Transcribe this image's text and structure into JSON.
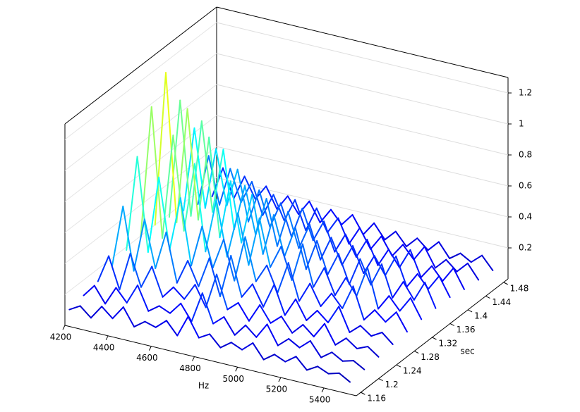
{
  "chart_data": {
    "type": "waterfall3d",
    "xlabel": "Hz",
    "ylabel": "sec",
    "x": [
      4200,
      4250,
      4300,
      4350,
      4400,
      4450,
      4500,
      4550,
      4600,
      4650,
      4700,
      4750,
      4800,
      4850,
      4900,
      4950,
      5000,
      5050,
      5100,
      5150,
      5200,
      5250,
      5300,
      5350,
      5400,
      5450,
      5500
    ],
    "xlim": [
      4200,
      5550
    ],
    "xticks": [
      4200,
      4400,
      4600,
      4800,
      5000,
      5200,
      5400
    ],
    "ylim": [
      1.15,
      1.49
    ],
    "yticks": [
      1.16,
      1.2,
      1.24,
      1.28,
      1.32,
      1.36,
      1.4,
      1.44,
      1.48
    ],
    "zlim": [
      0,
      1.3
    ],
    "zticks": [
      0.2,
      0.4,
      0.6,
      0.8,
      1,
      1.2
    ],
    "colormap": "jet",
    "colorlim": [
      0,
      1.2
    ],
    "series": [
      {
        "time": 1.16,
        "values": [
          0.08,
          0.12,
          0.06,
          0.15,
          0.09,
          0.18,
          0.07,
          0.12,
          0.1,
          0.16,
          0.08,
          0.22,
          0.1,
          0.14,
          0.07,
          0.12,
          0.09,
          0.15,
          0.06,
          0.11,
          0.08,
          0.13,
          0.06,
          0.1,
          0.07,
          0.09,
          0.05
        ]
      },
      {
        "time": 1.192,
        "values": [
          0.1,
          0.18,
          0.08,
          0.2,
          0.12,
          0.25,
          0.1,
          0.15,
          0.12,
          0.2,
          0.1,
          0.3,
          0.12,
          0.18,
          0.08,
          0.16,
          0.1,
          0.2,
          0.08,
          0.14,
          0.1,
          0.16,
          0.07,
          0.12,
          0.08,
          0.1,
          0.06
        ]
      },
      {
        "time": 1.224,
        "values": [
          0.12,
          0.3,
          0.1,
          0.35,
          0.15,
          0.3,
          0.12,
          0.2,
          0.14,
          0.25,
          0.12,
          0.35,
          0.14,
          0.2,
          0.1,
          0.22,
          0.12,
          0.18,
          0.09,
          0.16,
          0.1,
          0.2,
          0.08,
          0.14,
          0.09,
          0.12,
          0.07
        ]
      },
      {
        "time": 1.256,
        "values": [
          0.15,
          0.55,
          0.15,
          0.5,
          0.2,
          0.45,
          0.14,
          0.3,
          0.15,
          0.35,
          0.12,
          0.4,
          0.15,
          0.25,
          0.12,
          0.28,
          0.1,
          0.22,
          0.1,
          0.18,
          0.12,
          0.24,
          0.09,
          0.15,
          0.1,
          0.14,
          0.08
        ]
      },
      {
        "time": 1.288,
        "values": [
          0.18,
          0.8,
          0.2,
          0.7,
          0.25,
          0.6,
          0.18,
          0.45,
          0.2,
          0.4,
          0.15,
          0.45,
          0.18,
          0.3,
          0.14,
          0.35,
          0.12,
          0.25,
          0.12,
          0.22,
          0.14,
          0.3,
          0.1,
          0.18,
          0.12,
          0.2,
          0.09
        ]
      },
      {
        "time": 1.32,
        "values": [
          0.2,
          1.05,
          0.22,
          0.9,
          0.3,
          0.75,
          0.2,
          0.55,
          0.2,
          0.5,
          0.18,
          0.5,
          0.2,
          0.35,
          0.15,
          0.4,
          0.14,
          0.28,
          0.12,
          0.25,
          0.15,
          0.35,
          0.1,
          0.2,
          0.12,
          0.22,
          0.1
        ]
      },
      {
        "time": 1.352,
        "values": [
          0.2,
          1.2,
          0.25,
          1.0,
          0.3,
          0.85,
          0.22,
          0.6,
          0.22,
          0.55,
          0.18,
          0.45,
          0.2,
          0.4,
          0.15,
          0.35,
          0.15,
          0.3,
          0.12,
          0.3,
          0.15,
          0.3,
          0.1,
          0.22,
          0.12,
          0.25,
          0.1
        ]
      },
      {
        "time": 1.384,
        "values": [
          0.18,
          0.95,
          0.22,
          0.85,
          0.28,
          0.7,
          0.2,
          0.5,
          0.2,
          0.45,
          0.16,
          0.4,
          0.18,
          0.35,
          0.14,
          0.3,
          0.14,
          0.28,
          0.12,
          0.25,
          0.14,
          0.28,
          0.1,
          0.2,
          0.12,
          0.22,
          0.1
        ]
      },
      {
        "time": 1.416,
        "values": [
          0.15,
          0.7,
          0.2,
          0.6,
          0.25,
          0.5,
          0.18,
          0.4,
          0.18,
          0.35,
          0.15,
          0.35,
          0.16,
          0.3,
          0.12,
          0.25,
          0.12,
          0.25,
          0.1,
          0.22,
          0.12,
          0.25,
          0.09,
          0.18,
          0.1,
          0.2,
          0.08
        ]
      },
      {
        "time": 1.448,
        "values": [
          0.12,
          0.45,
          0.15,
          0.4,
          0.2,
          0.35,
          0.15,
          0.3,
          0.15,
          0.3,
          0.12,
          0.28,
          0.14,
          0.25,
          0.1,
          0.22,
          0.1,
          0.2,
          0.09,
          0.18,
          0.1,
          0.2,
          0.08,
          0.15,
          0.09,
          0.16,
          0.07
        ]
      },
      {
        "time": 1.48,
        "values": [
          0.1,
          0.3,
          0.12,
          0.28,
          0.15,
          0.25,
          0.12,
          0.22,
          0.12,
          0.22,
          0.1,
          0.2,
          0.12,
          0.2,
          0.09,
          0.18,
          0.09,
          0.16,
          0.08,
          0.15,
          0.09,
          0.16,
          0.07,
          0.12,
          0.08,
          0.14,
          0.06
        ]
      }
    ]
  }
}
